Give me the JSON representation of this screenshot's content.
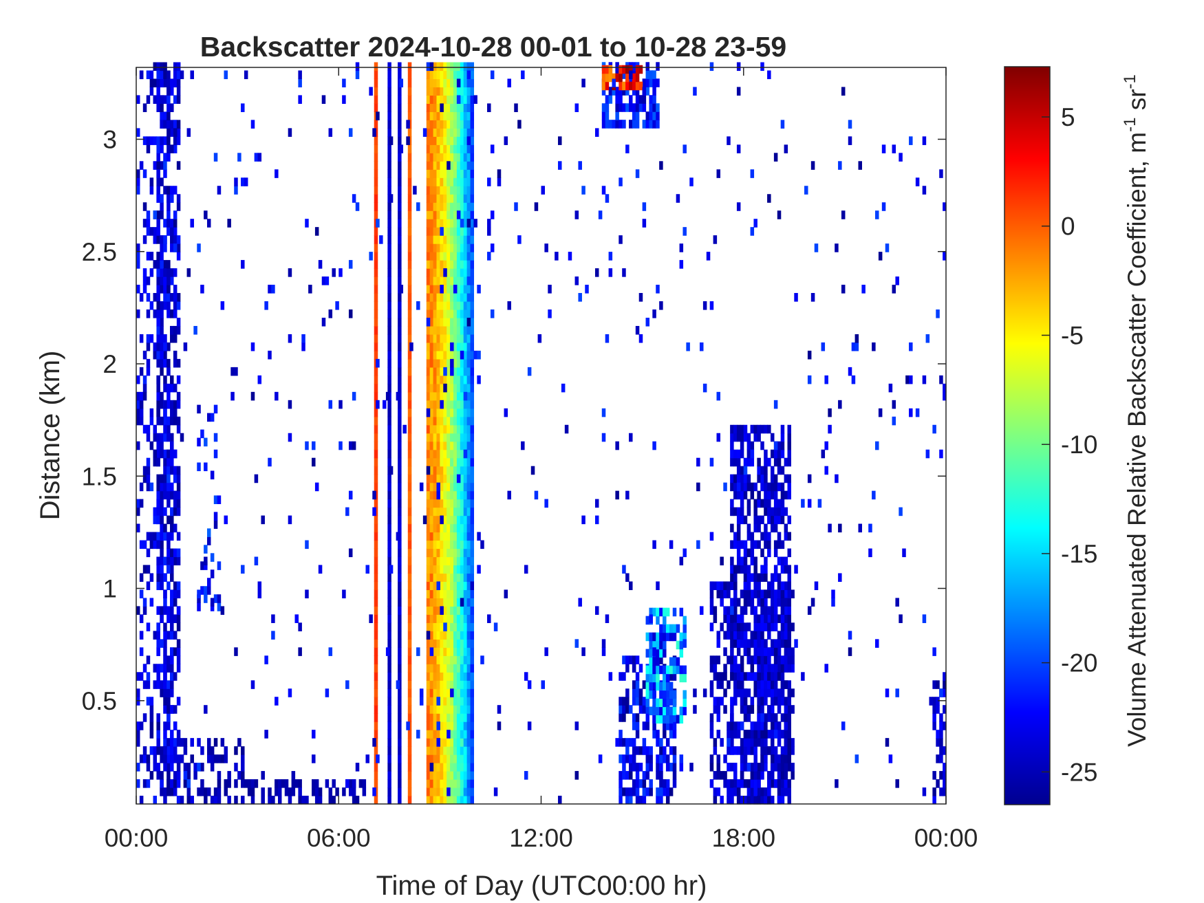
{
  "chart_data": {
    "type": "heatmap",
    "title": "Backscatter 2024-10-28 00-01 to 10-28 23-59",
    "xlabel": "Time of Day (UTC00:00 hr)",
    "ylabel": "Distance (km)",
    "colorbar_label": "Volume Attenuated Relative Backscatter Coefficient, m",
    "colorbar_label_sup1": "-1",
    "colorbar_label_mid": " sr",
    "colorbar_label_sup2": "-1",
    "x_range_hours": [
      0,
      24
    ],
    "ylim_km": [
      0.04,
      3.32
    ],
    "clim": [
      -26.5,
      7.3
    ],
    "colormap": "jet",
    "x_ticks": [
      {
        "value": 0,
        "label": "00:00"
      },
      {
        "value": 6,
        "label": "06:00"
      },
      {
        "value": 12,
        "label": "12:00"
      },
      {
        "value": 18,
        "label": "18:00"
      },
      {
        "value": 24,
        "label": "00:00"
      }
    ],
    "y_ticks": [
      {
        "value": 0.5,
        "label": "0.5"
      },
      {
        "value": 1,
        "label": "1"
      },
      {
        "value": 1.5,
        "label": "1.5"
      },
      {
        "value": 2,
        "label": "2"
      },
      {
        "value": 2.5,
        "label": "2.5"
      },
      {
        "value": 3,
        "label": "3"
      }
    ],
    "colorbar_ticks": [
      {
        "value": 5,
        "label": "5"
      },
      {
        "value": 0,
        "label": "0"
      },
      {
        "value": -5,
        "label": "-5"
      },
      {
        "value": -10,
        "label": "-10"
      },
      {
        "value": -15,
        "label": "-15"
      },
      {
        "value": -20,
        "label": "-20"
      },
      {
        "value": -25,
        "label": "-25"
      }
    ],
    "features": [
      {
        "kind": "column",
        "t0": 0.0,
        "t1": 1.2,
        "z0": 0.04,
        "z1": 3.32,
        "density": 0.28,
        "vmin": -26,
        "vmax": -21
      },
      {
        "kind": "column",
        "t0": 0.6,
        "t1": 1.3,
        "z0": 0.04,
        "z1": 3.32,
        "density": 0.55,
        "vmin": -26,
        "vmax": -21
      },
      {
        "kind": "column",
        "t0": 1.8,
        "t1": 2.5,
        "z0": 0.9,
        "z1": 1.8,
        "density": 0.2,
        "vmin": -25,
        "vmax": -19
      },
      {
        "kind": "column",
        "t0": 1.2,
        "t1": 3.2,
        "z0": 0.04,
        "z1": 0.32,
        "density": 0.5,
        "vmin": -26,
        "vmax": -23
      },
      {
        "kind": "column",
        "t0": 3.2,
        "t1": 6.8,
        "z0": 0.04,
        "z1": 0.12,
        "density": 0.5,
        "vmin": -26,
        "vmax": -24
      },
      {
        "kind": "line",
        "t": 7.05,
        "z0": 0.04,
        "z1": 3.32,
        "value": 1
      },
      {
        "kind": "line",
        "t": 7.45,
        "z0": 0.04,
        "z1": 3.32,
        "value": -24
      },
      {
        "kind": "line",
        "t": 7.75,
        "z0": 0.04,
        "z1": 3.32,
        "value": -24
      },
      {
        "kind": "line",
        "t": 8.05,
        "z0": 0.04,
        "z1": 3.32,
        "value": 0
      },
      {
        "kind": "band",
        "t0": 8.6,
        "t1": 10.0,
        "z0": 0.04,
        "z1": 3.32,
        "vstart": -1.5,
        "vend": -22
      },
      {
        "kind": "column",
        "t0": 13.8,
        "t1": 15.5,
        "z0": 3.05,
        "z1": 3.32,
        "density": 0.7,
        "vmin": -25,
        "vmax": -19
      },
      {
        "kind": "column",
        "t0": 13.8,
        "t1": 15.0,
        "z0": 3.22,
        "z1": 3.32,
        "density": 0.8,
        "vmin": -2,
        "vmax": 7
      },
      {
        "kind": "column",
        "t0": 14.3,
        "t1": 16.0,
        "z0": 0.04,
        "z1": 0.7,
        "density": 0.55,
        "vmin": -26,
        "vmax": -20
      },
      {
        "kind": "column",
        "t0": 15.1,
        "t1": 16.3,
        "z0": 0.4,
        "z1": 0.9,
        "density": 0.7,
        "vmin": -24,
        "vmax": -12
      },
      {
        "kind": "column",
        "t0": 17.0,
        "t1": 19.5,
        "z0": 0.04,
        "z1": 1.0,
        "density": 0.5,
        "vmin": -26,
        "vmax": -22
      },
      {
        "kind": "column",
        "t0": 17.6,
        "t1": 19.4,
        "z0": 0.04,
        "z1": 1.72,
        "density": 0.65,
        "vmin": -26,
        "vmax": -22
      },
      {
        "kind": "column",
        "t0": 23.6,
        "t1": 24.0,
        "z0": 0.04,
        "z1": 0.6,
        "density": 0.45,
        "vmin": -26,
        "vmax": -22
      },
      {
        "kind": "column",
        "t0": 0.0,
        "t1": 24.0,
        "z0": 0.04,
        "z1": 3.32,
        "density": 0.025,
        "vmin": -26,
        "vmax": -20
      }
    ]
  }
}
